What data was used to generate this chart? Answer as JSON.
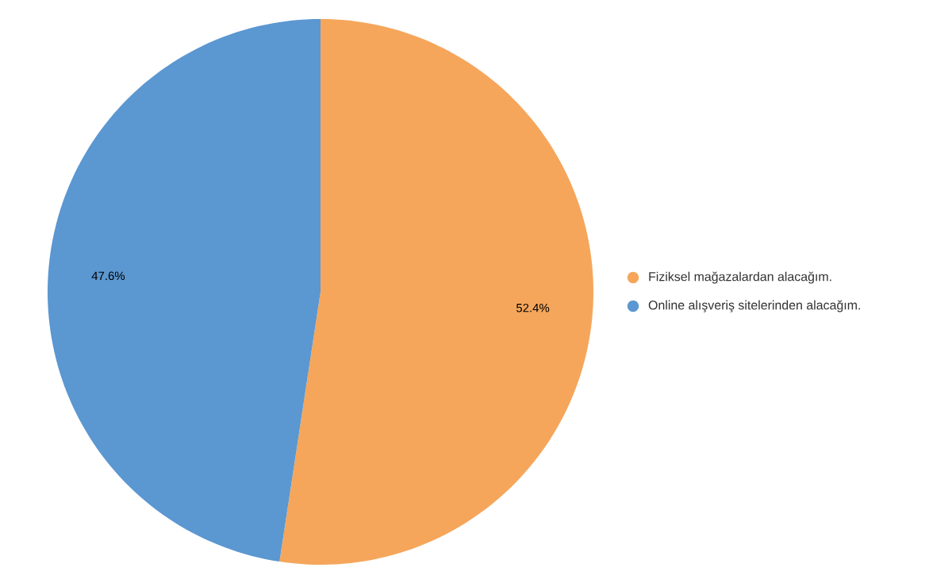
{
  "chart_data": {
    "type": "pie",
    "categories": [
      "Fiziksel mağazalardan alacağım.",
      "Online alışveriş sitelerinden alacağım."
    ],
    "values": [
      52.4,
      47.6
    ],
    "value_labels": [
      "52.4%",
      "47.6%"
    ],
    "colors": [
      "#f5a65b",
      "#5b97d1"
    ],
    "legend": "right"
  }
}
